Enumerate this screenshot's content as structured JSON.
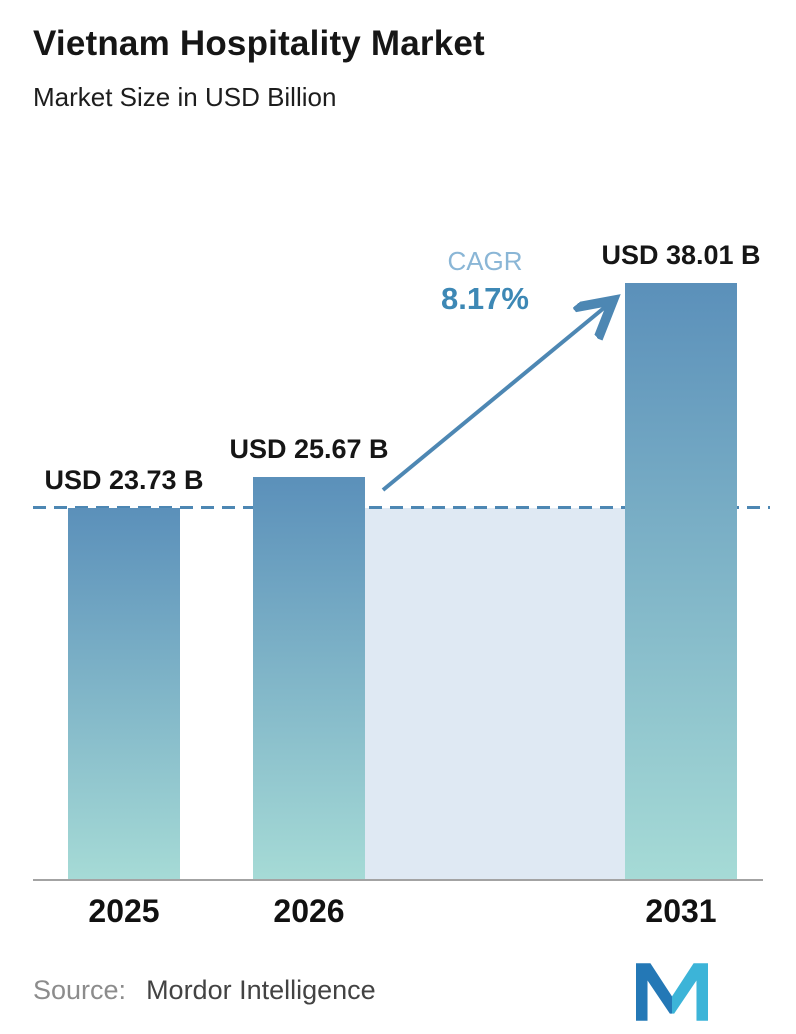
{
  "header": {
    "title": "Vietnam Hospitality Market",
    "subtitle": "Market Size in USD Billion"
  },
  "chart_data": {
    "type": "bar",
    "categories": [
      "2025",
      "2026",
      "2031"
    ],
    "values": [
      23.73,
      25.67,
      38.01
    ],
    "value_labels": [
      "USD 23.73 B",
      "USD 25.67 B",
      "USD 38.01 B"
    ],
    "title": "Vietnam Hospitality Market",
    "ylabel": "Market Size in USD Billion",
    "ylim": [
      0,
      40
    ],
    "grid": false,
    "legend": "none",
    "annotations": {
      "cagr_label": "CAGR",
      "cagr_value": "8.17%",
      "arrow": "from top of 2026 bar to top of 2031 bar"
    },
    "reference_line": {
      "value": 23.73,
      "style": "dashed"
    },
    "forecast_band": {
      "from": "2026",
      "to": "2031"
    },
    "colors": {
      "bar_gradient_top": "#5b90ba",
      "bar_gradient_bottom": "#a6dbd6",
      "dashed_line": "#4d87b3",
      "forecast_band": "#dfe9f3",
      "cagr_label": "#8ab6d6",
      "cagr_value": "#3d88b5",
      "axis_line": "#a3a3a3"
    }
  },
  "footer": {
    "source_label": "Source:",
    "source_value": "Mordor Intelligence",
    "logo": "mordor-intelligence-logo",
    "logo_colors": [
      "#2478b6",
      "#3cb4d8"
    ]
  }
}
